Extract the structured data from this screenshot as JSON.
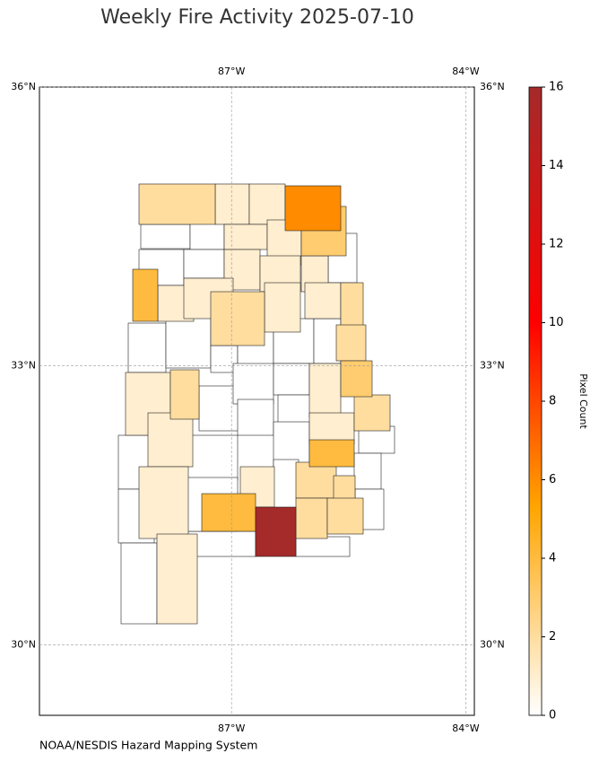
{
  "chart_data": {
    "type": "choropleth",
    "title": "Weekly Fire Activity 2025-07-10",
    "credit": "NOAA/NESDIS Hazard Mapping System",
    "xlim": [
      -89.46,
      -83.89
    ],
    "ylim": [
      29.24,
      36
    ],
    "xticks": [
      {
        "value": -87,
        "label": "87°W"
      },
      {
        "value": -84,
        "label": "84°W"
      }
    ],
    "yticks": [
      {
        "value": 36,
        "label": "36°N"
      },
      {
        "value": 33,
        "label": "33°N"
      },
      {
        "value": 30,
        "label": "30°N"
      }
    ],
    "grid": true,
    "colorbar_label": "Pixel Count",
    "colorbar_lim": [
      0,
      16
    ],
    "colorbar_ticks": [
      0,
      2,
      4,
      6,
      8,
      10,
      12,
      14,
      16
    ],
    "colormap": [
      {
        "value": 0,
        "color": "#ffffff"
      },
      {
        "value": 5.3,
        "color": "#ffa500"
      },
      {
        "value": 10,
        "color": "#ff0000"
      },
      {
        "value": 16,
        "color": "#a52a2a"
      }
    ],
    "county_values": [
      2,
      1,
      1,
      6,
      0,
      0,
      1,
      1,
      3,
      0,
      0,
      1,
      1,
      1,
      0,
      4,
      1,
      1,
      2,
      1,
      1,
      2,
      0,
      0,
      0,
      0,
      0,
      0,
      2,
      1,
      2,
      0,
      0,
      0,
      1,
      3,
      0,
      0,
      1,
      2,
      0,
      0,
      1,
      0,
      0,
      4,
      0,
      0,
      1,
      4,
      1,
      0,
      2,
      2,
      0,
      2,
      16,
      0,
      2,
      0,
      0,
      1,
      0
    ]
  }
}
